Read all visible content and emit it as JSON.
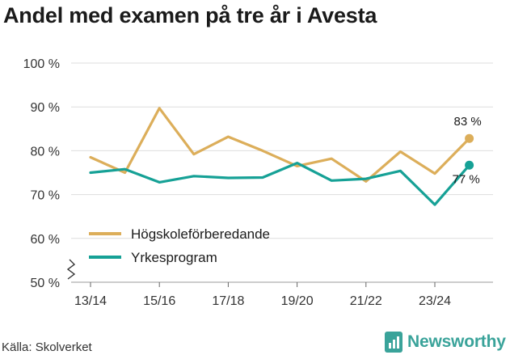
{
  "title": "Andel med examen på tre år i Avesta",
  "source": "Källa: Skolverket",
  "brand": "Newsworthy",
  "colors": {
    "hogskole": "#dcae5a",
    "yrkes": "#16a196",
    "grid": "#dddddd",
    "brand": "#3aa39a"
  },
  "chart_data": {
    "type": "line",
    "title": "Andel med examen på tre år i Avesta",
    "x_tick_labels": [
      "13/14",
      "15/16",
      "17/18",
      "19/20",
      "21/22",
      "23/24"
    ],
    "y_tick_labels": [
      "50 %",
      "60 %",
      "70 %",
      "80 %",
      "90 %",
      "100 %"
    ],
    "y_ticks": [
      50,
      60,
      70,
      80,
      90,
      100
    ],
    "ylim": [
      50,
      100
    ],
    "y_axis_break": true,
    "grid": true,
    "legend_position": "bottom-left",
    "categories": [
      "13/14",
      "14/15",
      "15/16",
      "16/17",
      "17/18",
      "18/19",
      "19/20",
      "20/21",
      "21/22",
      "22/23",
      "23/24",
      "24/25"
    ],
    "series": [
      {
        "name": "Högskoleförberedande",
        "color": "#dcae5a",
        "values": [
          78.5,
          75,
          89.7,
          79.2,
          83.2,
          80,
          76.5,
          78.2,
          73,
          79.8,
          74.8,
          82.8
        ],
        "end_label": "83 %"
      },
      {
        "name": "Yrkesprogram",
        "color": "#16a196",
        "values": [
          75,
          75.8,
          72.8,
          74.2,
          73.8,
          73.9,
          77.2,
          73.2,
          73.6,
          75.4,
          67.7,
          76.7
        ],
        "end_label": "77 %"
      }
    ]
  }
}
